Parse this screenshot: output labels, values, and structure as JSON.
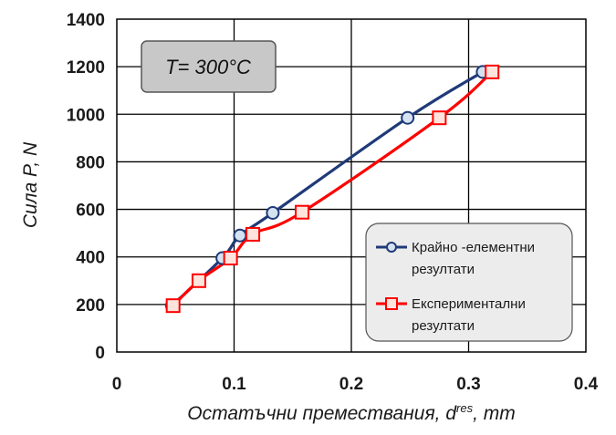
{
  "chart_data": {
    "type": "line",
    "title": "",
    "annotation": "T= 300°C",
    "xlabel_main": "Остатъчни премествания, d",
    "xlabel_sup": "res",
    "xlabel_tail": ", mm",
    "ylabel": "Сила P, N",
    "xlim": [
      0,
      0.4
    ],
    "ylim": [
      0,
      1400
    ],
    "x_ticks": [
      "0",
      "0.1",
      "0.2",
      "0.3",
      "0.4"
    ],
    "y_ticks": [
      "0",
      "200",
      "400",
      "600",
      "800",
      "1000",
      "1200",
      "1400"
    ],
    "grid": true,
    "legend_position": "bottom-right",
    "series": [
      {
        "name_lines": [
          "Крайно -елементни",
          "резултати"
        ],
        "color": "#1f3a78",
        "marker": "circle",
        "marker_fill": "#d5e3f1",
        "points": [
          [
            0.047,
            195
          ],
          [
            0.09,
            395
          ],
          [
            0.105,
            490
          ],
          [
            0.133,
            585
          ],
          [
            0.248,
            985
          ],
          [
            0.312,
            1178
          ]
        ]
      },
      {
        "name_lines": [
          "Експериментални",
          "резултати"
        ],
        "color": "#ff0000",
        "marker": "square",
        "marker_fill": "#fde4dc",
        "points": [
          [
            0.048,
            195
          ],
          [
            0.07,
            300
          ],
          [
            0.097,
            395
          ],
          [
            0.116,
            495
          ],
          [
            0.158,
            588
          ],
          [
            0.275,
            985
          ],
          [
            0.32,
            1178
          ]
        ]
      }
    ]
  }
}
